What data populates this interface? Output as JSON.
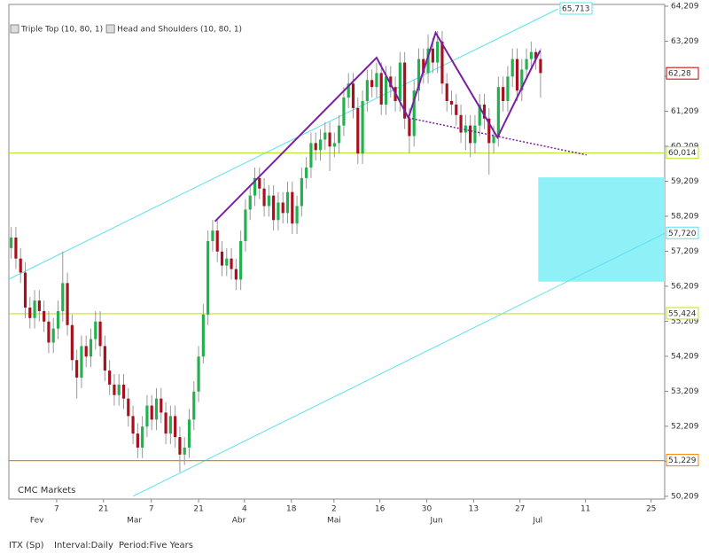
{
  "chart_data": {
    "type": "candlestick",
    "legend": [
      {
        "name": "Triple Top (10, 80, 1)",
        "color": "#00bcd4"
      },
      {
        "name": "Head and Shoulders (10, 80, 1)",
        "color": "#7b1fa2"
      }
    ],
    "source": "CMC Markets",
    "footer": [
      "ITX (Sp)",
      "Interval:Daily",
      "Period:Five Years"
    ],
    "up_color": "#22b14c",
    "down_color": "#a8101e",
    "xlim": [
      -0.5,
      139.5
    ],
    "ylim": [
      50.13,
      64.26
    ],
    "yticks": [
      {
        "value": 50.209,
        "label": "50,209"
      },
      {
        "value": 51.209,
        "label": "51,209"
      },
      {
        "value": 52.209,
        "label": "52,209"
      },
      {
        "value": 53.209,
        "label": "53,209"
      },
      {
        "value": 54.209,
        "label": "54,209"
      },
      {
        "value": 55.209,
        "label": "55,209"
      },
      {
        "value": 56.209,
        "label": "56,209"
      },
      {
        "value": 57.209,
        "label": "57,209"
      },
      {
        "value": 58.209,
        "label": "58,209"
      },
      {
        "value": 59.209,
        "label": "59,209"
      },
      {
        "value": 60.209,
        "label": "60,209"
      },
      {
        "value": 61.209,
        "label": "61,209"
      },
      {
        "value": 62.209,
        "label": "62,209"
      },
      {
        "value": 63.209,
        "label": "63,209"
      },
      {
        "value": 64.209,
        "label": "64,209"
      }
    ],
    "xticks": [
      {
        "value": 9.7,
        "label": "7"
      },
      {
        "value": 19.7,
        "label": "21"
      },
      {
        "value": 29.9,
        "label": "7"
      },
      {
        "value": 40,
        "label": "21"
      },
      {
        "value": 49.8,
        "label": "4"
      },
      {
        "value": 59.8,
        "label": "18"
      },
      {
        "value": 68.9,
        "label": "2"
      },
      {
        "value": 78.7,
        "label": "16"
      },
      {
        "value": 88.7,
        "label": "30"
      },
      {
        "value": 98.7,
        "label": "13"
      },
      {
        "value": 108.6,
        "label": "27"
      },
      {
        "value": 122.6,
        "label": "11"
      },
      {
        "value": 136.6,
        "label": "25"
      }
    ],
    "month_ticks": [
      {
        "value": 5.5,
        "label": "Fev"
      },
      {
        "value": 26.3,
        "label": "Mar"
      },
      {
        "value": 48.6,
        "label": "Abr"
      },
      {
        "value": 68.9,
        "label": "Mai"
      },
      {
        "value": 90.8,
        "label": "Jun"
      },
      {
        "value": 112.4,
        "label": "Jul"
      }
    ],
    "candles": [
      [
        57.3,
        57.9,
        57.0,
        57.6
      ],
      [
        57.6,
        57.9,
        56.7,
        57.0
      ],
      [
        57.0,
        57.3,
        56.3,
        56.6
      ],
      [
        56.6,
        56.9,
        55.3,
        55.6
      ],
      [
        55.6,
        55.9,
        55.0,
        55.3
      ],
      [
        55.3,
        56.1,
        55.0,
        55.8
      ],
      [
        55.8,
        56.1,
        55.2,
        55.5
      ],
      [
        55.5,
        55.8,
        54.9,
        55.2
      ],
      [
        55.2,
        55.5,
        54.3,
        54.6
      ],
      [
        54.6,
        55.3,
        54.3,
        55.0
      ],
      [
        55.0,
        55.8,
        54.7,
        55.5
      ],
      [
        55.5,
        57.2,
        55.2,
        56.3
      ],
      [
        56.3,
        56.6,
        54.8,
        55.1
      ],
      [
        55.1,
        55.4,
        53.8,
        54.1
      ],
      [
        54.1,
        54.4,
        53.0,
        53.6
      ],
      [
        53.6,
        54.8,
        53.3,
        54.5
      ],
      [
        54.5,
        54.8,
        53.9,
        54.2
      ],
      [
        54.2,
        55.0,
        53.9,
        54.7
      ],
      [
        54.7,
        55.5,
        54.4,
        55.2
      ],
      [
        55.2,
        55.5,
        54.2,
        54.5
      ],
      [
        54.5,
        54.8,
        53.5,
        53.8
      ],
      [
        53.8,
        54.1,
        53.1,
        53.4
      ],
      [
        53.4,
        53.7,
        52.8,
        53.1
      ],
      [
        53.1,
        53.7,
        52.8,
        53.4
      ],
      [
        53.4,
        53.7,
        52.7,
        53.0
      ],
      [
        53.0,
        53.3,
        52.2,
        52.5
      ],
      [
        52.5,
        52.8,
        51.7,
        52.0
      ],
      [
        52.0,
        52.3,
        51.3,
        51.6
      ],
      [
        51.6,
        52.5,
        51.3,
        52.2
      ],
      [
        52.2,
        53.1,
        51.9,
        52.8
      ],
      [
        52.8,
        53.1,
        52.1,
        52.4
      ],
      [
        52.4,
        53.3,
        52.1,
        53.0
      ],
      [
        53.0,
        53.3,
        52.3,
        52.6
      ],
      [
        52.6,
        52.9,
        51.7,
        52.0
      ],
      [
        52.0,
        52.8,
        51.7,
        52.5
      ],
      [
        52.5,
        52.8,
        51.6,
        51.9
      ],
      [
        51.9,
        52.2,
        50.9,
        51.4
      ],
      [
        51.4,
        51.9,
        51.1,
        51.6
      ],
      [
        51.6,
        52.7,
        51.3,
        52.4
      ],
      [
        52.4,
        53.5,
        52.1,
        53.2
      ],
      [
        53.2,
        54.5,
        52.9,
        54.2
      ],
      [
        54.2,
        55.7,
        54.0,
        55.4
      ],
      [
        55.4,
        57.8,
        55.1,
        57.5
      ],
      [
        57.5,
        58.1,
        57.2,
        57.8
      ],
      [
        57.8,
        58.1,
        56.9,
        57.2
      ],
      [
        57.2,
        57.5,
        56.5,
        56.8
      ],
      [
        56.8,
        57.3,
        56.5,
        57.0
      ],
      [
        57.0,
        57.3,
        56.4,
        56.7
      ],
      [
        56.7,
        57.0,
        56.1,
        56.4
      ],
      [
        56.4,
        57.8,
        56.1,
        57.5
      ],
      [
        57.5,
        58.7,
        57.2,
        58.4
      ],
      [
        58.4,
        59.1,
        58.1,
        58.8
      ],
      [
        58.8,
        59.6,
        58.5,
        59.3
      ],
      [
        59.3,
        59.6,
        58.7,
        59.0
      ],
      [
        59.0,
        59.3,
        58.2,
        58.5
      ],
      [
        58.5,
        59.1,
        58.2,
        58.8
      ],
      [
        58.8,
        59.1,
        57.8,
        58.1
      ],
      [
        58.1,
        58.9,
        57.8,
        58.6
      ],
      [
        58.6,
        58.9,
        58.0,
        58.3
      ],
      [
        58.3,
        59.2,
        58.0,
        58.9
      ],
      [
        58.9,
        59.2,
        57.7,
        58.0
      ],
      [
        58.0,
        58.8,
        57.7,
        58.5
      ],
      [
        58.5,
        59.6,
        58.2,
        59.3
      ],
      [
        59.3,
        59.9,
        59.0,
        59.6
      ],
      [
        59.6,
        60.6,
        59.3,
        60.3
      ],
      [
        60.3,
        60.6,
        59.8,
        60.1
      ],
      [
        60.1,
        60.7,
        59.8,
        60.4
      ],
      [
        60.4,
        60.9,
        60.1,
        60.6
      ],
      [
        60.6,
        60.9,
        59.5,
        60.2
      ],
      [
        60.2,
        60.6,
        59.9,
        60.3
      ],
      [
        60.3,
        61.1,
        60.0,
        60.8
      ],
      [
        60.8,
        61.9,
        60.5,
        61.6
      ],
      [
        61.6,
        62.3,
        61.3,
        62.0
      ],
      [
        62.0,
        62.3,
        61.0,
        61.3
      ],
      [
        61.3,
        61.6,
        59.7,
        60.0
      ],
      [
        60.0,
        61.8,
        59.7,
        61.5
      ],
      [
        61.5,
        62.4,
        61.2,
        62.1
      ],
      [
        62.1,
        62.4,
        61.6,
        61.9
      ],
      [
        61.9,
        62.6,
        61.6,
        62.3
      ],
      [
        62.3,
        62.6,
        61.1,
        61.4
      ],
      [
        61.4,
        62.5,
        61.1,
        62.2
      ],
      [
        62.2,
        62.5,
        61.6,
        61.9
      ],
      [
        61.9,
        62.2,
        61.2,
        61.5
      ],
      [
        61.5,
        62.9,
        61.2,
        62.6
      ],
      [
        62.6,
        62.9,
        60.7,
        61.0
      ],
      [
        61.0,
        61.3,
        60.0,
        60.5
      ],
      [
        60.5,
        62.1,
        60.2,
        61.8
      ],
      [
        61.8,
        63.0,
        61.5,
        62.7
      ],
      [
        62.7,
        63.0,
        62.0,
        62.3
      ],
      [
        62.3,
        63.4,
        62.0,
        63.0
      ],
      [
        63.0,
        63.3,
        62.3,
        62.6
      ],
      [
        62.6,
        63.5,
        62.3,
        63.2
      ],
      [
        63.2,
        63.5,
        61.7,
        62.0
      ],
      [
        62.0,
        62.3,
        61.2,
        61.5
      ],
      [
        61.5,
        61.8,
        61.1,
        61.4
      ],
      [
        61.4,
        61.7,
        60.8,
        61.1
      ],
      [
        61.1,
        61.4,
        60.3,
        60.6
      ],
      [
        60.6,
        61.1,
        60.1,
        60.8
      ],
      [
        60.8,
        61.1,
        59.9,
        60.3
      ],
      [
        60.3,
        61.1,
        60.0,
        60.8
      ],
      [
        60.8,
        61.7,
        60.5,
        61.4
      ],
      [
        61.4,
        61.7,
        60.7,
        61.0
      ],
      [
        61.0,
        61.3,
        59.4,
        60.3
      ],
      [
        60.3,
        60.8,
        60.0,
        60.5
      ],
      [
        60.5,
        62.2,
        60.2,
        61.9
      ],
      [
        61.9,
        62.2,
        61.2,
        61.5
      ],
      [
        61.5,
        62.5,
        61.2,
        62.2
      ],
      [
        62.2,
        63.0,
        61.9,
        62.7
      ],
      [
        62.7,
        63.0,
        61.5,
        61.8
      ],
      [
        61.8,
        62.7,
        61.5,
        62.4
      ],
      [
        62.4,
        63.0,
        62.1,
        62.7
      ],
      [
        62.7,
        63.2,
        62.4,
        62.9
      ],
      [
        62.9,
        63.0,
        62.4,
        62.7
      ],
      [
        62.7,
        63.0,
        61.6,
        62.3
      ]
    ],
    "levels": [
      {
        "value": 60.014,
        "label": "60,014",
        "color": "#b5e61d"
      },
      {
        "value": 55.424,
        "label": "55,424",
        "color": "#c8e020"
      },
      {
        "value": 51.229,
        "label": "51,229",
        "color": "#ff7f00"
      }
    ],
    "last_price": {
      "value": 62.28,
      "label": "62,28",
      "color": "#c00000"
    },
    "channel": {
      "color": "#5ce1f0",
      "upper": [
        [
          -0.5,
          56.41
        ],
        [
          116.7,
          64.13
        ]
      ],
      "upper_label": "65,713",
      "lower": [
        [
          26.0,
          50.21
        ],
        [
          139.5,
          57.72
        ]
      ],
      "lower_label": "57,720"
    },
    "zone": {
      "color": "#8ff0f7",
      "x": [
        112.5,
        139.5
      ],
      "y": [
        56.34,
        59.32
      ]
    },
    "pattern": {
      "color": "#7b1fa2",
      "points": [
        [
          43.5,
          58.06
        ],
        [
          78.0,
          62.74
        ],
        [
          84.8,
          61.02
        ],
        [
          90.6,
          63.45
        ],
        [
          103.8,
          60.46
        ],
        [
          112.9,
          62.94
        ]
      ],
      "neckline": [
        [
          84.8,
          61.02
        ],
        [
          122.8,
          59.96
        ]
      ]
    }
  }
}
